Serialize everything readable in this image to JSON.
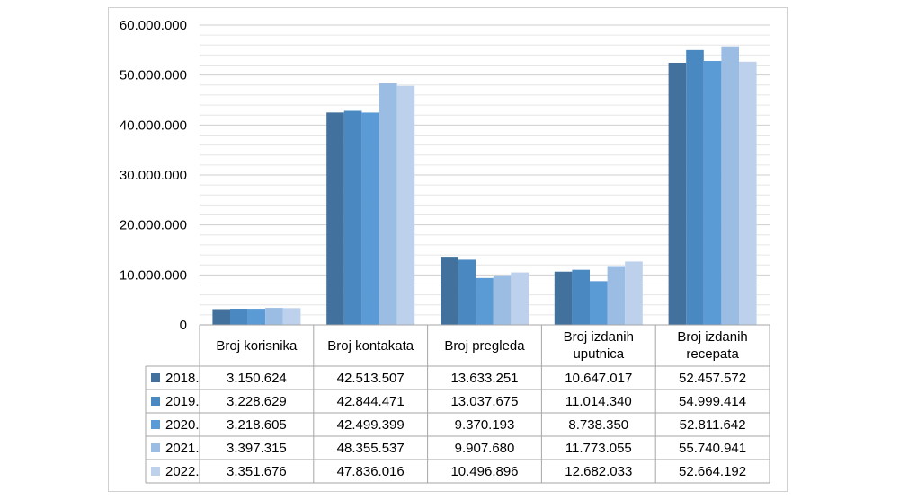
{
  "chart_data": {
    "type": "bar",
    "categories": [
      "Broj korisnika",
      "Broj kontakata",
      "Broj pregleda",
      "Broj izdanih uputnica",
      "Broj izdanih recepata"
    ],
    "category_lines": [
      [
        "Broj korisnika"
      ],
      [
        "Broj kontakata"
      ],
      [
        "Broj pregleda"
      ],
      [
        "Broj izdanih",
        "uputnica"
      ],
      [
        "Broj izdanih",
        "recepata"
      ]
    ],
    "series": [
      {
        "name": "2018.",
        "color": "#41719c",
        "values": [
          3150624,
          42513507,
          13633251,
          10647017,
          52457572
        ],
        "labels": [
          "3.150.624",
          "42.513.507",
          "13.633.251",
          "10.647.017",
          "52.457.572"
        ]
      },
      {
        "name": "2019.",
        "color": "#4a88c2",
        "values": [
          3228629,
          42844471,
          13037675,
          11014340,
          54999414
        ],
        "labels": [
          "3.228.629",
          "42.844.471",
          "13.037.675",
          "11.014.340",
          "54.999.414"
        ]
      },
      {
        "name": "2020.",
        "color": "#5b9bd5",
        "values": [
          3218605,
          42499399,
          9370193,
          8738350,
          52811642
        ],
        "labels": [
          "3.218.605",
          "42.499.399",
          "9.370.193",
          "8.738.350",
          "52.811.642"
        ]
      },
      {
        "name": "2021.",
        "color": "#9bbde4",
        "values": [
          3397315,
          48355537,
          9907680,
          11773055,
          55740941
        ],
        "labels": [
          "3.397.315",
          "48.355.537",
          "9.907.680",
          "11.773.055",
          "55.740.941"
        ]
      },
      {
        "name": "2022.",
        "color": "#bdd1ec",
        "values": [
          3351676,
          47836016,
          10496896,
          12682033,
          52664192
        ],
        "labels": [
          "3.351.676",
          "47.836.016",
          "10.496.896",
          "12.682.033",
          "52.664.192"
        ]
      }
    ],
    "y_ticks": [
      "0",
      "10.000.000",
      "20.000.000",
      "30.000.000",
      "40.000.000",
      "50.000.000",
      "60.000.000"
    ],
    "ylim": [
      0,
      60000000
    ],
    "grid": true,
    "legend": "data-table"
  }
}
